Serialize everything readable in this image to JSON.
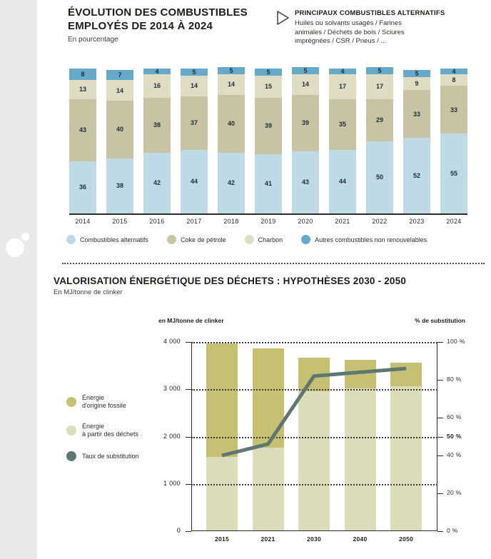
{
  "page": {
    "background": "#ffffff",
    "sidebar_color": "#e9e9e9"
  },
  "section1": {
    "title_lines": [
      "ÉVOLUTION DES COMBUSTIBLES",
      "EMPLOYÉS DE 2014 À 2024"
    ],
    "subtitle": "En pourcentage",
    "callout": {
      "title": "PRINCIPAUX COMBUSTIBLES ALTERNATIFS",
      "body_lines": [
        "Huiles ou solvants usagés / Farines",
        "animales / Déchets de bois / Sciures",
        "imprégnées / CSR / Pneus / ..."
      ]
    }
  },
  "section2": {
    "title": "VALORISATION ÉNERGÉTIQUE DES DÉCHETS : HYPOTHÈSES 2030 - 2050",
    "subtitle": "En MJ/tonne de clinker",
    "left_axis_caption": "en MJ/tonne de clinker",
    "right_axis_caption": "% de substitution",
    "legend": [
      {
        "lines": [
          "Énergie",
          "d'origine fossile"
        ],
        "color": "#c6c172"
      },
      {
        "lines": [
          "Énergie",
          "à partir des déchets"
        ],
        "color": "#dadcba"
      },
      {
        "lines": [
          "Taux de substitution"
        ],
        "color": "#5e7772"
      }
    ]
  },
  "chart_data": [
    {
      "type": "bar",
      "stacked": true,
      "title": "ÉVOLUTION DES COMBUSTIBLES EMPLOYÉS DE 2014 À 2024",
      "unit": "En pourcentage",
      "categories": [
        "2014",
        "2015",
        "2016",
        "2017",
        "2018",
        "2019",
        "2020",
        "2021",
        "2022",
        "2023",
        "2024"
      ],
      "series": [
        {
          "name": "Combustibles alternatifs",
          "color": "#bedae7",
          "values": [
            36,
            38,
            42,
            44,
            42,
            41,
            43,
            44,
            50,
            52,
            55
          ]
        },
        {
          "name": "Coke de pétrole",
          "color": "#c6c4a2",
          "values": [
            43,
            40,
            38,
            37,
            40,
            39,
            39,
            35,
            29,
            33,
            33
          ]
        },
        {
          "name": "Charbon",
          "color": "#deddc3",
          "values": [
            13,
            14,
            16,
            14,
            14,
            15,
            14,
            17,
            17,
            9,
            8
          ]
        },
        {
          "name": "Autres combustibles non renouvelables",
          "color": "#66aac9",
          "values": [
            8,
            7,
            4,
            5,
            5,
            5,
            5,
            4,
            5,
            5,
            4
          ]
        }
      ],
      "ylim": [
        0,
        100
      ],
      "legend_position": "bottom"
    },
    {
      "type": "bar+line",
      "stacked": true,
      "title": "VALORISATION ÉNERGÉTIQUE DES DÉCHETS : HYPOTHÈSES 2030 - 2050",
      "unit": "En MJ/tonne de clinker",
      "categories": [
        "2015",
        "2021",
        "2030",
        "2040",
        "2050"
      ],
      "series": [
        {
          "name": "Énergie d'origine fossile",
          "color": "#c6c172",
          "values": [
            2400,
            2100,
            700,
            600,
            500
          ]
        },
        {
          "name": "Énergie à partir des déchets",
          "color": "#dadcba",
          "values": [
            1550,
            1750,
            2950,
            3000,
            3050
          ]
        }
      ],
      "totals": [
        3950,
        3850,
        3650,
        3600,
        3550
      ],
      "line": {
        "name": "Taux de substitution",
        "color": "#5e7772",
        "values_percent": [
          40,
          46,
          82,
          84,
          86
        ]
      },
      "left_axis": {
        "caption": "en MJ/tonne de clinker",
        "max": 4000,
        "tick_values": [
          4000,
          3000,
          2000,
          1000,
          0
        ],
        "tick_labels": [
          "4 000",
          "3 000",
          "2 000",
          "1 000",
          "0"
        ]
      },
      "right_axis": {
        "caption": "% de substitution",
        "tick_values": [
          100,
          80,
          60,
          50,
          40,
          20,
          0
        ],
        "tick_labels": [
          "100 %",
          "80 %",
          "60 %",
          "50 %",
          "40 %",
          "20 %",
          "0 %"
        ],
        "bold_value": 50
      },
      "grid": "dotted horizontal at 1000/2000/3000/4000"
    }
  ]
}
